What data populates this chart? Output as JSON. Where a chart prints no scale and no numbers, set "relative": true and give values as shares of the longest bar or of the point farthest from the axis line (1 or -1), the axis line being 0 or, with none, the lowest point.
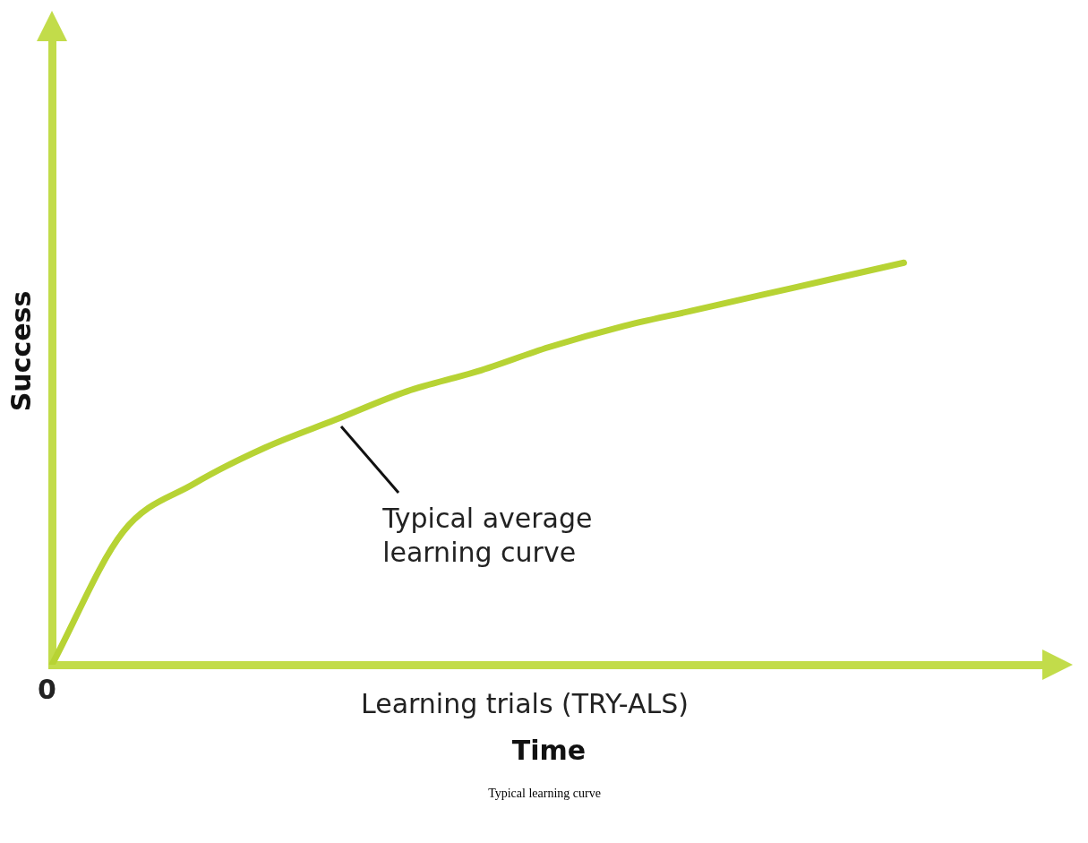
{
  "chart_data": {
    "type": "line",
    "relative": true,
    "xlabel": "Time",
    "ylabel": "Success",
    "categories": [
      null,
      null,
      null,
      null,
      null,
      null,
      null,
      null,
      null,
      null,
      null,
      null,
      null,
      null,
      null
    ],
    "values": [
      0,
      0.33,
      0.45,
      0.54,
      0.61,
      0.68,
      0.73,
      0.79,
      0.84,
      0.88,
      0.92,
      0.96,
      1,
      null,
      null
    ],
    "color": "#b7d334",
    "marker": "none",
    "grid": false,
    "legend": false,
    "tick_labels": false,
    "annotations": [
      "0",
      "Typical average learning curve",
      "Learning trials (TRY-ALS)",
      "Typical learning curve"
    ]
  }
}
